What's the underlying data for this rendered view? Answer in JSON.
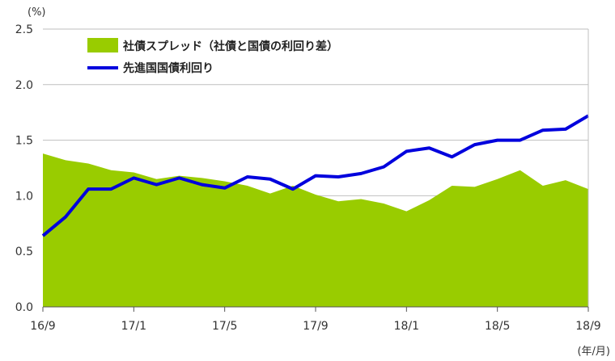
{
  "chart_data": {
    "type": "area",
    "y_unit": "(%)",
    "x_unit": "(年/月)",
    "ylim": [
      0,
      2.5
    ],
    "y_ticks": [
      "0.0",
      "0.5",
      "1.0",
      "1.5",
      "2.0",
      "2.5"
    ],
    "x_tick_labels": [
      "16/9",
      "17/1",
      "17/5",
      "17/9",
      "18/1",
      "18/5",
      "18/9"
    ],
    "x": [
      "16/9",
      "16/10",
      "16/11",
      "16/12",
      "17/1",
      "17/2",
      "17/3",
      "17/4",
      "17/5",
      "17/6",
      "17/7",
      "17/8",
      "17/9",
      "17/10",
      "17/11",
      "17/12",
      "18/1",
      "18/2",
      "18/3",
      "18/4",
      "18/5",
      "18/6",
      "18/7",
      "18/8",
      "18/9"
    ],
    "grid": true,
    "legend_position": "top-left",
    "colors": {
      "area": "#99cc00",
      "line": "#0000dd",
      "grid": "#bfbfbf"
    },
    "series": [
      {
        "name": "社債スプレッド（社債と国債の利回り差）",
        "type": "area",
        "values": [
          1.38,
          1.32,
          1.29,
          1.23,
          1.21,
          1.15,
          1.18,
          1.16,
          1.13,
          1.09,
          1.02,
          1.09,
          1.01,
          0.95,
          0.97,
          0.93,
          0.86,
          0.96,
          1.09,
          1.08,
          1.15,
          1.23,
          1.09,
          1.14,
          1.06
        ]
      },
      {
        "name": "先進国国債利回り",
        "type": "line",
        "values": [
          0.64,
          0.81,
          1.06,
          1.06,
          1.16,
          1.1,
          1.16,
          1.1,
          1.07,
          1.17,
          1.15,
          1.06,
          1.18,
          1.17,
          1.2,
          1.26,
          1.4,
          1.43,
          1.35,
          1.46,
          1.5,
          1.5,
          1.59,
          1.6,
          1.72
        ]
      }
    ]
  }
}
